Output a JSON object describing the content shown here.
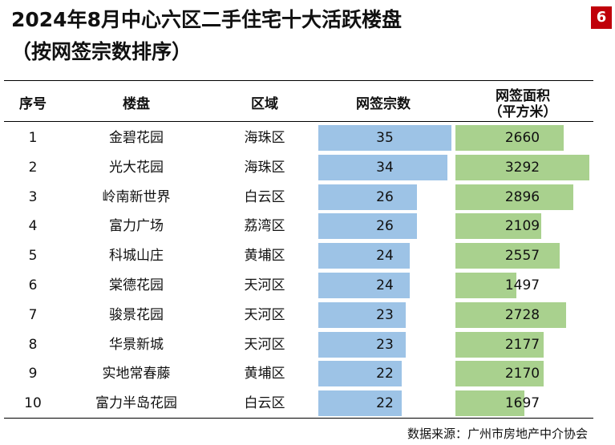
{
  "title_line1": "2024年8月中心六区二手住宅十大活跃楼盘",
  "title_line2": "（按网签宗数排序）",
  "page_number": "6",
  "columns": {
    "rank": "序号",
    "estate": "楼盘",
    "district": "区域",
    "count": "网签宗数",
    "area_l1": "网签面积",
    "area_l2": "（平方米）"
  },
  "source": "数据来源：广州市房地产中介协会",
  "colors": {
    "count_bar": "#9dc3e6",
    "area_bar": "#a9d18e",
    "badge": "#c0000a"
  },
  "chart_data": {
    "type": "table",
    "rows": [
      {
        "rank": "1",
        "estate": "金碧花园",
        "district": "海珠区",
        "count": 35,
        "area": 2660
      },
      {
        "rank": "2",
        "estate": "光大花园",
        "district": "海珠区",
        "count": 34,
        "area": 3292
      },
      {
        "rank": "3",
        "estate": "岭南新世界",
        "district": "白云区",
        "count": 26,
        "area": 2896
      },
      {
        "rank": "4",
        "estate": "富力广场",
        "district": "荔湾区",
        "count": 26,
        "area": 2109
      },
      {
        "rank": "5",
        "estate": "科城山庄",
        "district": "黄埔区",
        "count": 24,
        "area": 2557
      },
      {
        "rank": "6",
        "estate": "棠德花园",
        "district": "天河区",
        "count": 24,
        "area": 1497
      },
      {
        "rank": "7",
        "estate": "骏景花园",
        "district": "天河区",
        "count": 23,
        "area": 2728
      },
      {
        "rank": "8",
        "estate": "华景新城",
        "district": "天河区",
        "count": 23,
        "area": 2177
      },
      {
        "rank": "9",
        "estate": "实地常春藤",
        "district": "黄埔区",
        "count": 22,
        "area": 2170
      },
      {
        "rank": "10",
        "estate": "富力半岛花园",
        "district": "白云区",
        "count": 22,
        "area": 1697
      }
    ]
  }
}
